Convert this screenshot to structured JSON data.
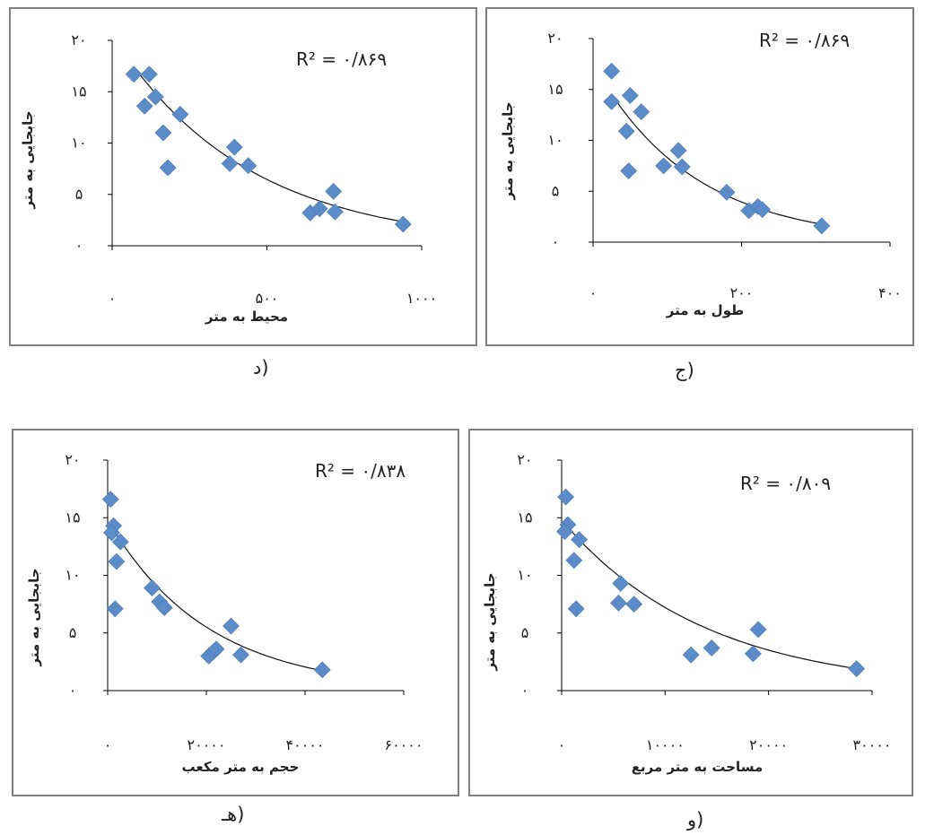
{
  "page": {
    "background": "#ffffff",
    "frame_color": "#808080",
    "marker_color": "#5b8cc8",
    "trend_color": "#111111"
  },
  "chart_data": [
    {
      "id": "d",
      "type": "scatter",
      "caption": "د)",
      "r2_label": "R² =  ۰/۸۶۹",
      "xlabel": "محیط به متر",
      "ylabel": "جابجایی به متر",
      "xlim": [
        0,
        1000
      ],
      "ylim": [
        0,
        20
      ],
      "x_ticks": [
        0,
        500,
        1000
      ],
      "x_tick_labels": [
        "۰",
        "۵۰۰",
        "۱۰۰۰"
      ],
      "y_ticks": [
        0,
        5,
        10,
        15,
        20
      ],
      "y_tick_labels": [
        "۰",
        "۵",
        "۱۰",
        "۱۵",
        "۲۰"
      ],
      "points": [
        [
          70,
          16.7
        ],
        [
          120,
          16.7
        ],
        [
          140,
          14.5
        ],
        [
          105,
          13.6
        ],
        [
          220,
          12.8
        ],
        [
          165,
          11.0
        ],
        [
          180,
          7.6
        ],
        [
          380,
          8.0
        ],
        [
          395,
          9.6
        ],
        [
          440,
          7.8
        ],
        [
          640,
          3.2
        ],
        [
          670,
          3.6
        ],
        [
          715,
          5.3
        ],
        [
          720,
          3.3
        ],
        [
          940,
          2.1
        ]
      ],
      "trendline": {
        "a": 20.5,
        "b": 0.00231
      }
    },
    {
      "id": "j",
      "type": "scatter",
      "caption": "ج)",
      "r2_label": "R² =  ۰/۸۶۹",
      "xlabel": "طول به متر",
      "ylabel": "جابجایی به متر",
      "xlim": [
        0,
        400
      ],
      "ylim": [
        0,
        20
      ],
      "x_ticks": [
        0,
        200,
        400
      ],
      "x_tick_labels": [
        "۰",
        "۲۰۰",
        "۴۰۰"
      ],
      "y_ticks": [
        0,
        5,
        10,
        15,
        20
      ],
      "y_tick_labels": [
        "۰",
        "۵",
        "۱۰",
        "۱۵",
        "۲۰"
      ],
      "points": [
        [
          25,
          16.8
        ],
        [
          25,
          13.8
        ],
        [
          50,
          14.4
        ],
        [
          45,
          10.9
        ],
        [
          65,
          12.8
        ],
        [
          48,
          7.0
        ],
        [
          95,
          7.5
        ],
        [
          115,
          9.0
        ],
        [
          120,
          7.4
        ],
        [
          180,
          4.9
        ],
        [
          210,
          3.1
        ],
        [
          222,
          3.5
        ],
        [
          228,
          3.2
        ],
        [
          308,
          1.6
        ]
      ],
      "trendline": {
        "a": 17.5,
        "b": 0.00745
      }
    },
    {
      "id": "h",
      "type": "scatter",
      "caption": "هـ)",
      "r2_label": "R² =  ۰/۸۳۸",
      "xlabel": "حجم به متر مکعب",
      "ylabel": "جابجایی به متر",
      "xlim": [
        0,
        60000
      ],
      "ylim": [
        0,
        20
      ],
      "x_ticks": [
        0,
        20000,
        40000,
        60000
      ],
      "x_tick_labels": [
        "۰",
        "۲۰۰۰۰",
        "۴۰۰۰۰",
        "۶۰۰۰۰"
      ],
      "y_ticks": [
        0,
        5,
        10,
        15,
        20
      ],
      "y_tick_labels": [
        "۰",
        "۵",
        "۱۰",
        "۱۵",
        "۲۰"
      ],
      "points": [
        [
          600,
          16.6
        ],
        [
          1200,
          14.3
        ],
        [
          800,
          13.7
        ],
        [
          2600,
          12.9
        ],
        [
          1800,
          11.2
        ],
        [
          1500,
          7.1
        ],
        [
          9000,
          8.9
        ],
        [
          10500,
          7.7
        ],
        [
          11500,
          7.2
        ],
        [
          20500,
          3.0
        ],
        [
          21500,
          3.4
        ],
        [
          22000,
          3.6
        ],
        [
          25000,
          5.6
        ],
        [
          27000,
          3.1
        ],
        [
          43500,
          1.8
        ]
      ],
      "trendline": {
        "a": 14.8,
        "b": 4.94e-05
      }
    },
    {
      "id": "w",
      "type": "scatter",
      "caption": "و)",
      "r2_label": "R² =  ۰/۸۰۹",
      "xlabel": "مساحت به متر مربع",
      "ylabel": "جابجایی به متر",
      "xlim": [
        0,
        30000
      ],
      "ylim": [
        0,
        20
      ],
      "x_ticks": [
        0,
        10000,
        20000,
        30000
      ],
      "x_tick_labels": [
        "۰",
        "۱۰۰۰۰",
        "۲۰۰۰۰",
        "۳۰۰۰۰"
      ],
      "y_ticks": [
        0,
        5,
        10,
        15,
        20
      ],
      "y_tick_labels": [
        "۰",
        "۵",
        "۱۰",
        "۱۵",
        "۲۰"
      ],
      "points": [
        [
          400,
          16.8
        ],
        [
          600,
          14.4
        ],
        [
          300,
          13.8
        ],
        [
          1700,
          13.1
        ],
        [
          1200,
          11.3
        ],
        [
          1400,
          7.1
        ],
        [
          5500,
          7.6
        ],
        [
          5700,
          9.3
        ],
        [
          7000,
          7.5
        ],
        [
          12500,
          3.1
        ],
        [
          14500,
          3.7
        ],
        [
          18500,
          3.2
        ],
        [
          19000,
          5.3
        ],
        [
          28500,
          1.9
        ]
      ],
      "trendline": {
        "a": 14.8,
        "b": 7.19e-05
      }
    }
  ]
}
